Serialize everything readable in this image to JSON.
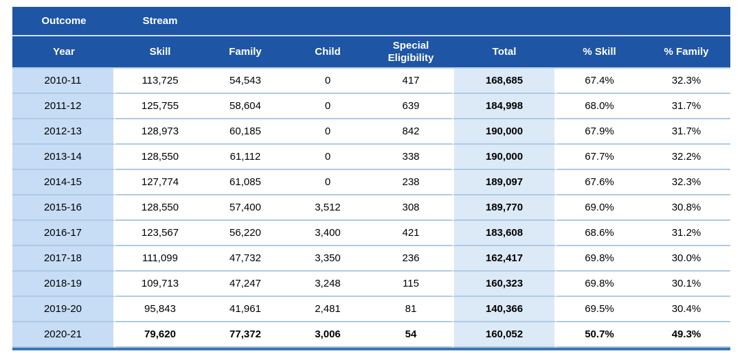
{
  "table": {
    "header_group": {
      "outcome": "Outcome",
      "stream": "Stream"
    },
    "columns": [
      "Year",
      "Skill",
      "Family",
      "Child",
      "Special Eligibility",
      "Total",
      "% Skill",
      "% Family"
    ],
    "rows": [
      {
        "year": "2010-11",
        "skill": "113,725",
        "family": "54,543",
        "child": "0",
        "special_eligibility": "417",
        "total": "168,685",
        "pct_skill": "67.4%",
        "pct_family": "32.3%"
      },
      {
        "year": "2011-12",
        "skill": "125,755",
        "family": "58,604",
        "child": "0",
        "special_eligibility": "639",
        "total": "184,998",
        "pct_skill": "68.0%",
        "pct_family": "31.7%"
      },
      {
        "year": "2012-13",
        "skill": "128,973",
        "family": "60,185",
        "child": "0",
        "special_eligibility": "842",
        "total": "190,000",
        "pct_skill": "67.9%",
        "pct_family": "31.7%"
      },
      {
        "year": "2013-14",
        "skill": "128,550",
        "family": "61,112",
        "child": "0",
        "special_eligibility": "338",
        "total": "190,000",
        "pct_skill": "67.7%",
        "pct_family": "32.2%"
      },
      {
        "year": "2014-15",
        "skill": "127,774",
        "family": "61,085",
        "child": "0",
        "special_eligibility": "238",
        "total": "189,097",
        "pct_skill": "67.6%",
        "pct_family": "32.3%"
      },
      {
        "year": "2015-16",
        "skill": "128,550",
        "family": "57,400",
        "child": "3,512",
        "special_eligibility": "308",
        "total": "189,770",
        "pct_skill": "69.0%",
        "pct_family": "30.8%"
      },
      {
        "year": "2016-17",
        "skill": "123,567",
        "family": "56,220",
        "child": "3,400",
        "special_eligibility": "421",
        "total": "183,608",
        "pct_skill": "68.6%",
        "pct_family": "31.2%"
      },
      {
        "year": "2017-18",
        "skill": "111,099",
        "family": "47,732",
        "child": "3,350",
        "special_eligibility": "236",
        "total": "162,417",
        "pct_skill": "69.8%",
        "pct_family": "30.0%"
      },
      {
        "year": "2018-19",
        "skill": "109,713",
        "family": "47,247",
        "child": "3,248",
        "special_eligibility": "115",
        "total": "160,323",
        "pct_skill": "69.8%",
        "pct_family": "30.1%"
      },
      {
        "year": "2019-20",
        "skill": "95,843",
        "family": "41,961",
        "child": "2,481",
        "special_eligibility": "81",
        "total": "140,366",
        "pct_skill": "69.5%",
        "pct_family": "30.4%"
      },
      {
        "year": "2020-21",
        "skill": "79,620",
        "family": "77,372",
        "child": "3,006",
        "special_eligibility": "54",
        "total": "160,052",
        "pct_skill": "50.7%",
        "pct_family": "49.3%"
      }
    ]
  },
  "colors": {
    "header_bg": "#1E55A5",
    "year_col_bg": "#C7DCF5",
    "total_col_bg": "#DCE9F7",
    "row_divider": "#AECAE5",
    "bottom_border": "#3E76B5",
    "header_divider": "#CDE0F2",
    "header_text": "#FFFFFF",
    "body_text": "#000000"
  }
}
